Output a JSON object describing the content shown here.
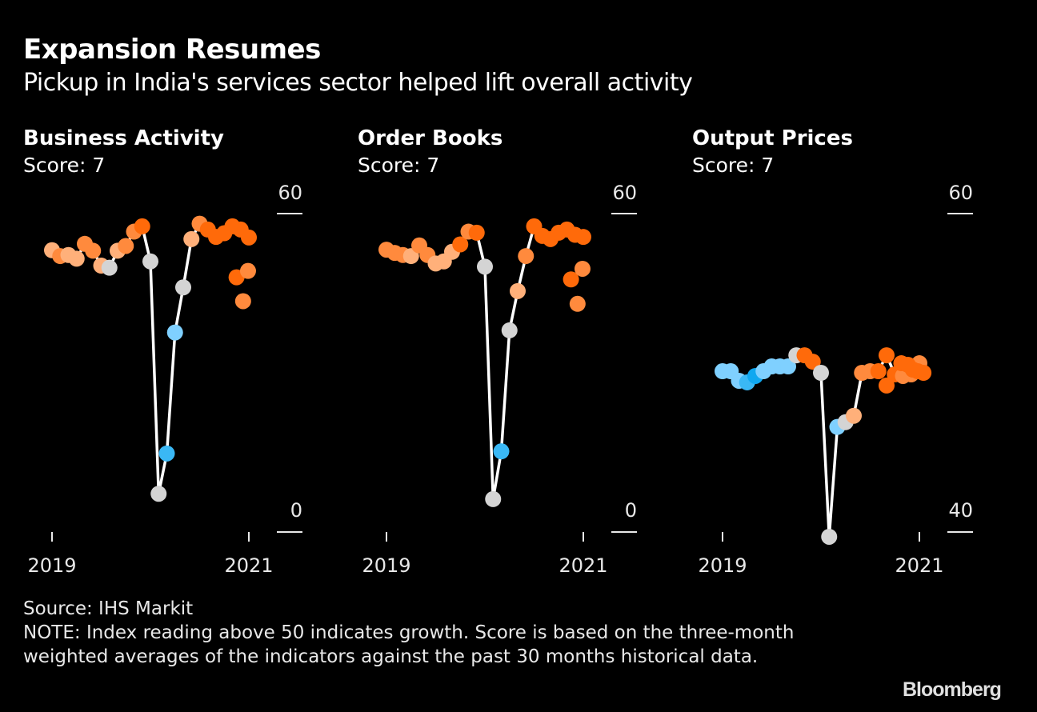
{
  "header": {
    "title": "Expansion Resumes",
    "subtitle": "Pickup in India's services sector helped lift overall activity"
  },
  "panels": [
    {
      "title": "Business Activity",
      "score": "Score: 7"
    },
    {
      "title": "Order Books",
      "score": "Score: 7"
    },
    {
      "title": "Output Prices",
      "score": "Score: 7"
    }
  ],
  "colors": {
    "background": "#000000",
    "line": "#ffffff",
    "neutral": "#d4d4d4",
    "orange_dark": "#ff6a0a",
    "orange_mid": "#ff8a3d",
    "orange_light": "#ffb07a",
    "blue_light": "#7fd0ff",
    "blue_mid": "#3ab8f5",
    "blue_dark": "#10a8f0"
  },
  "chart_data": [
    {
      "type": "line",
      "title": "Business Activity",
      "subtitle": "Score: 7",
      "x": [
        "2019-01",
        "2019-02",
        "2019-03",
        "2019-04",
        "2019-05",
        "2019-06",
        "2019-07",
        "2019-08",
        "2019-09",
        "2019-10",
        "2019-11",
        "2019-12",
        "2020-01",
        "2020-02",
        "2020-03",
        "2020-04",
        "2020-05",
        "2020-06",
        "2020-07",
        "2020-08",
        "2020-09",
        "2020-10",
        "2020-11",
        "2020-12",
        "2021-01"
      ],
      "x_ticks": [
        "2019",
        "2021"
      ],
      "y_ticks": [
        "60",
        "0"
      ],
      "ylim": [
        0,
        60
      ],
      "values": [
        53.1,
        52.0,
        52.2,
        51.5,
        54.3,
        53.0,
        50.2,
        49.8,
        53.0,
        53.9,
        56.6,
        57.6,
        51.0,
        7.2,
        14.8,
        37.6,
        46.1,
        55.2,
        58.1,
        57.0,
        55.6,
        56.3,
        57.6,
        57.0,
        55.5
      ],
      "color_classes": [
        "orange_light",
        "orange_mid",
        "orange_light",
        "orange_light",
        "orange_mid",
        "orange_mid",
        "orange_light",
        "neutral",
        "orange_light",
        "orange_mid",
        "orange_mid",
        "orange_dark",
        "neutral",
        "neutral",
        "blue_mid",
        "blue_light",
        "neutral",
        "orange_light",
        "orange_mid",
        "orange_dark",
        "orange_dark",
        "orange_dark",
        "orange_dark",
        "orange_dark",
        "orange_dark"
      ],
      "extra_points": [
        {
          "x_index": 22.5,
          "value": 48.0,
          "color": "orange_dark"
        },
        {
          "x_index": 23.3,
          "value": 43.5,
          "color": "orange_mid"
        },
        {
          "x_index": 23.9,
          "value": 49.2,
          "color": "orange_mid"
        }
      ]
    },
    {
      "type": "line",
      "title": "Order Books",
      "subtitle": "Score: 7",
      "x": [
        "2019-01",
        "2019-02",
        "2019-03",
        "2019-04",
        "2019-05",
        "2019-06",
        "2019-07",
        "2019-08",
        "2019-09",
        "2019-10",
        "2019-11",
        "2019-12",
        "2020-01",
        "2020-02",
        "2020-03",
        "2020-04",
        "2020-05",
        "2020-06",
        "2020-07",
        "2020-08",
        "2020-09",
        "2020-10",
        "2020-11",
        "2020-12",
        "2021-01"
      ],
      "x_ticks": [
        "2019",
        "2021"
      ],
      "y_ticks": [
        "60",
        "0"
      ],
      "ylim": [
        0,
        60
      ],
      "values": [
        53.2,
        52.6,
        52.2,
        52.0,
        54.0,
        52.2,
        50.6,
        51.0,
        52.8,
        54.2,
        56.6,
        56.4,
        50.0,
        6.2,
        15.2,
        38.0,
        45.4,
        52.0,
        57.6,
        55.8,
        55.2,
        56.4,
        57.0,
        56.0,
        55.6
      ],
      "color_classes": [
        "orange_mid",
        "orange_mid",
        "orange_mid",
        "orange_light",
        "orange_mid",
        "orange_mid",
        "orange_light",
        "orange_light",
        "orange_light",
        "orange_dark",
        "orange_mid",
        "orange_dark",
        "neutral",
        "neutral",
        "blue_mid",
        "neutral",
        "orange_light",
        "orange_mid",
        "orange_dark",
        "orange_dark",
        "orange_dark",
        "orange_dark",
        "orange_dark",
        "orange_dark",
        "orange_dark"
      ],
      "extra_points": [
        {
          "x_index": 22.5,
          "value": 47.6,
          "color": "orange_dark"
        },
        {
          "x_index": 23.3,
          "value": 43.0,
          "color": "orange_mid"
        },
        {
          "x_index": 23.9,
          "value": 49.6,
          "color": "orange_mid"
        }
      ]
    },
    {
      "type": "line",
      "title": "Output Prices",
      "subtitle": "Score: 7",
      "x": [
        "2019-01",
        "2019-02",
        "2019-03",
        "2019-04",
        "2019-05",
        "2019-06",
        "2019-07",
        "2019-08",
        "2019-09",
        "2019-10",
        "2019-11",
        "2019-12",
        "2020-01",
        "2020-02",
        "2020-03",
        "2020-04",
        "2020-05",
        "2020-06",
        "2020-07",
        "2020-08",
        "2020-09",
        "2020-10",
        "2020-11",
        "2020-12",
        "2021-01"
      ],
      "x_ticks": [
        "2019",
        "2021"
      ],
      "y_ticks": [
        "60",
        "40"
      ],
      "ylim": [
        40,
        60
      ],
      "values": [
        50.1,
        50.1,
        49.5,
        49.4,
        49.8,
        50.1,
        50.4,
        50.4,
        50.4,
        51.1,
        51.1,
        50.7,
        50.0,
        39.7,
        46.6,
        46.9,
        47.3,
        50.0,
        50.1,
        50.1,
        51.1,
        49.9,
        49.8,
        49.9,
        50.6
      ],
      "color_classes": [
        "blue_light",
        "blue_light",
        "blue_light",
        "blue_mid",
        "blue_dark",
        "blue_light",
        "blue_light",
        "blue_light",
        "blue_light",
        "neutral",
        "orange_dark",
        "orange_dark",
        "neutral",
        "neutral",
        "blue_light",
        "neutral",
        "orange_light",
        "orange_mid",
        "orange_mid",
        "orange_dark",
        "orange_dark",
        "orange_dark",
        "orange_mid",
        "orange_mid",
        "orange_mid"
      ],
      "extra_points": [
        {
          "x_index": 20.0,
          "value": 49.2,
          "color": "orange_dark"
        },
        {
          "x_index": 21.8,
          "value": 50.6,
          "color": "orange_dark"
        },
        {
          "x_index": 22.6,
          "value": 50.5,
          "color": "orange_dark"
        },
        {
          "x_index": 23.2,
          "value": 50.2,
          "color": "orange_dark"
        },
        {
          "x_index": 23.8,
          "value": 50.1,
          "color": "orange_dark"
        },
        {
          "x_index": 24.5,
          "value": 50.0,
          "color": "orange_dark"
        }
      ]
    }
  ],
  "footer": {
    "source": "Source: IHS Markit",
    "note": "NOTE: Index reading above 50 indicates growth. Score is based on the three-month weighted averages of the indicators against the past 30 months historical data."
  },
  "brand": "Bloomberg"
}
